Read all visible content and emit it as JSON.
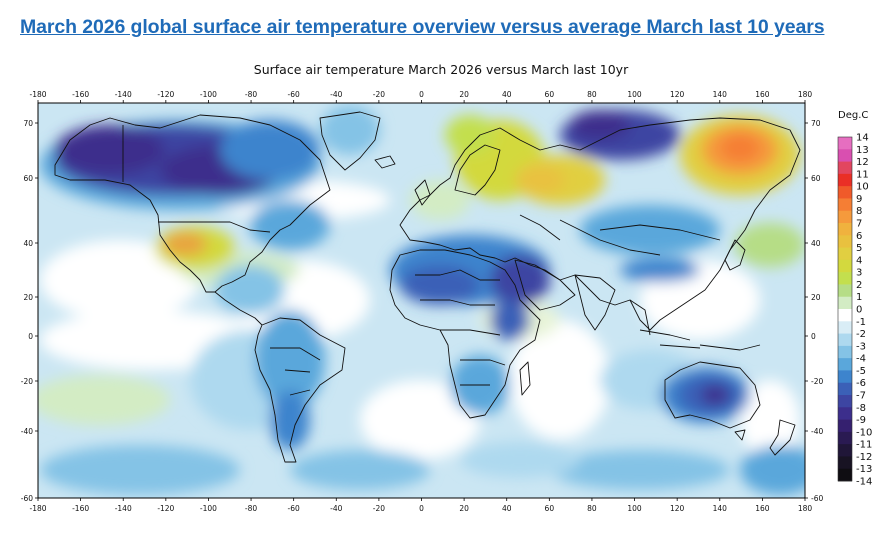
{
  "page_title": "March 2026 global surface air temperature overview versus average March last 10 years",
  "map_title": "Surface air temperature March 2026 versus March last 10yr",
  "x_ticks": [
    "-180",
    "-160",
    "-140",
    "-120",
    "-100",
    "-80",
    "-60",
    "-40",
    "-20",
    "0",
    "20",
    "40",
    "60",
    "80",
    "100",
    "120",
    "140",
    "160",
    "180"
  ],
  "y_ticks_left": [
    "70",
    "60",
    "40",
    "20",
    "0",
    "-20",
    "-40",
    "-60"
  ],
  "y_ticks_right": [
    "70",
    "60",
    "40",
    "20",
    "0",
    "-20",
    "-40",
    "-60"
  ],
  "legend": {
    "unit": "Deg.C",
    "labels": [
      "14",
      "13",
      "12",
      "11",
      "10",
      "9",
      "8",
      "7",
      "6",
      "5",
      "4",
      "3",
      "2",
      "1",
      "0",
      "-1",
      "-2",
      "-3",
      "-4",
      "-5",
      "-6",
      "-7",
      "-8",
      "-9",
      "-10",
      "-11",
      "-12",
      "-13",
      "-14"
    ],
    "colors": [
      "#e66ec0",
      "#d94fb0",
      "#e2465f",
      "#ea2f26",
      "#f05a2a",
      "#f57e34",
      "#f59a3c",
      "#f0b23e",
      "#e9c13f",
      "#e1cf41",
      "#d3d93e",
      "#c3df4e",
      "#b6dd86",
      "#d3ecc4",
      "#ffffff",
      "#d9edf6",
      "#aed9ef",
      "#84c3e6",
      "#5aa7db",
      "#3d84cd",
      "#3b60b7",
      "#3d45a2",
      "#3c2e8c",
      "#35206f",
      "#2a1a52",
      "#201638",
      "#181323",
      "#0f0d12"
    ]
  },
  "anomaly_regions": [
    {
      "label": "Canada / Alaska cold",
      "value": -8,
      "color": "#3c2e8c"
    },
    {
      "label": "Siberia warm",
      "value": 6,
      "color": "#f0b23e"
    },
    {
      "label": "Scandinavia / W Russia warm",
      "value": 4,
      "color": "#d3d93e"
    },
    {
      "label": "SW United States warm",
      "value": 6,
      "color": "#e9a340"
    },
    {
      "label": "North Africa / Arabia cold",
      "value": -5,
      "color": "#3d84cd"
    },
    {
      "label": "Australia cold",
      "value": -7,
      "color": "#3b60b7"
    },
    {
      "label": "South America cold",
      "value": -4,
      "color": "#5aa7db"
    }
  ]
}
